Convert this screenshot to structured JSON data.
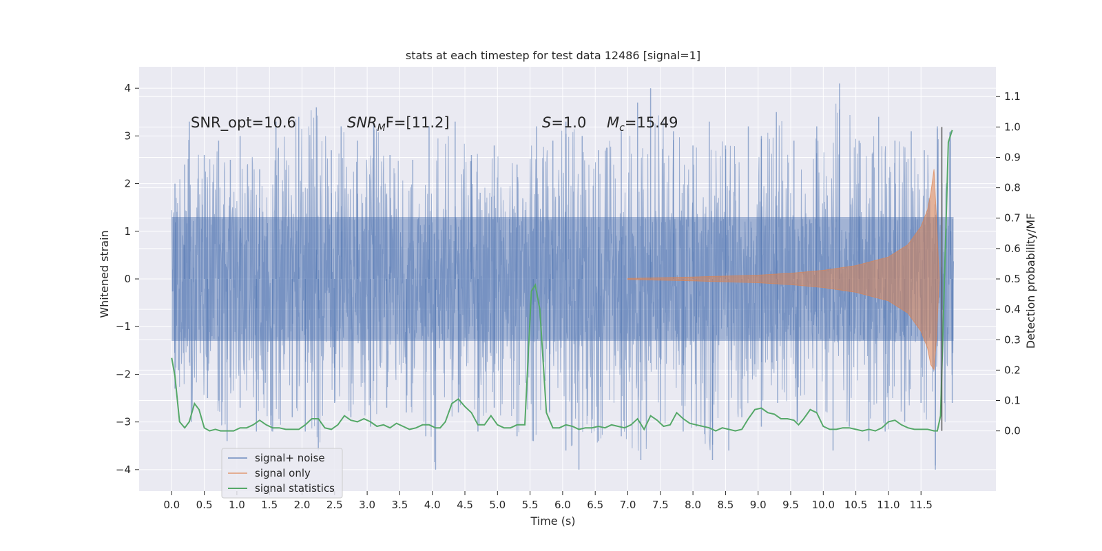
{
  "chart_data": {
    "type": "line",
    "title": "stats at each timestep for test data 12486 [signal=1]",
    "xlabel": "Time (s)",
    "ylabel": "Whitened strain",
    "y2label": "Detection probability/MF",
    "xlim": [
      -0.5,
      12.65
    ],
    "ylim": [
      -4.45,
      4.45
    ],
    "y2lim": [
      -0.198,
      1.198
    ],
    "x_ticks": [
      0.0,
      0.5,
      1.0,
      1.5,
      2.0,
      2.5,
      3.0,
      3.5,
      4.0,
      4.5,
      5.0,
      5.5,
      6.0,
      6.5,
      7.0,
      7.5,
      8.0,
      8.5,
      9.0,
      9.5,
      10.0,
      10.5,
      11.0,
      11.5
    ],
    "x_tick_labels": [
      "0.0",
      "0.5",
      "1.0",
      "1.5",
      "2.0",
      "2.5",
      "3.0",
      "3.5",
      "4.0",
      "4.5",
      "5.0",
      "5.5",
      "6.0",
      "6.5",
      "7.0",
      "7.5",
      "8.0",
      "8.5",
      "9.0",
      "9.5",
      "10.0",
      "10.5",
      "11.0",
      "11.5"
    ],
    "y_ticks": [
      -4,
      -3,
      -2,
      -1,
      0,
      1,
      2,
      3,
      4
    ],
    "y_tick_labels": [
      "−4",
      "−3",
      "−2",
      "−1",
      "0",
      "1",
      "2",
      "3",
      "4"
    ],
    "y2_ticks": [
      0.0,
      0.1,
      0.2,
      0.3,
      0.4,
      0.5,
      0.6,
      0.7,
      0.8,
      0.9,
      1.0,
      1.1
    ],
    "y2_tick_labels": [
      "0.0",
      "0.1",
      "0.2",
      "0.3",
      "0.4",
      "0.5",
      "0.6",
      "0.7",
      "0.8",
      "0.9",
      "1.0",
      "1.1"
    ],
    "grid": true,
    "legend_position": "lower-left",
    "colors": {
      "background": "#eaeaf2",
      "grid": "#ffffff",
      "signal_noise": "#4c72b0",
      "signal_only": "#dd8452",
      "signal_statistics": "#55a868",
      "marker_line": "#555555"
    },
    "annotations": {
      "snr_opt": "SNR_opt=10.6",
      "snr_mf_base": "SNR",
      "snr_mf_sub": "M",
      "snr_mf_tail": "F=[11.2]",
      "s_var": "S",
      "s_val": "=1.0",
      "mc_var": "M",
      "mc_sub": "c",
      "mc_val": "=15.49"
    },
    "series": [
      {
        "name": "signal+ noise",
        "axis": "left",
        "x_range": [
          0.0,
          12.0
        ],
        "band_1sigma": [
          -1.3,
          1.3
        ],
        "band_2sigma": [
          -1.95,
          1.95
        ],
        "peak_values": [
          [
            0.05,
            2.0
          ],
          [
            0.2,
            2.4
          ],
          [
            0.27,
            3.3
          ],
          [
            0.5,
            2.6
          ],
          [
            0.72,
            2.9
          ],
          [
            0.9,
            2.5
          ],
          [
            1.05,
            3.0
          ],
          [
            1.35,
            2.3
          ],
          [
            1.6,
            3.3
          ],
          [
            1.95,
            3.4
          ],
          [
            2.22,
            3.6
          ],
          [
            2.45,
            2.7
          ],
          [
            2.6,
            3.2
          ],
          [
            2.85,
            2.9
          ],
          [
            3.1,
            3.3
          ],
          [
            3.35,
            2.6
          ],
          [
            3.7,
            2.5
          ],
          [
            3.95,
            3.2
          ],
          [
            4.35,
            3.3
          ],
          [
            4.6,
            2.6
          ],
          [
            4.95,
            2.8
          ],
          [
            5.3,
            2.4
          ],
          [
            5.6,
            3.2
          ],
          [
            5.85,
            2.9
          ],
          [
            6.05,
            3.3
          ],
          [
            6.3,
            3.0
          ],
          [
            6.55,
            2.7
          ],
          [
            6.9,
            3.1
          ],
          [
            7.15,
            3.7
          ],
          [
            7.35,
            4.0
          ],
          [
            7.7,
            3.1
          ],
          [
            8.0,
            2.8
          ],
          [
            8.25,
            3.3
          ],
          [
            8.5,
            2.8
          ],
          [
            8.85,
            3.2
          ],
          [
            9.05,
            3.0
          ],
          [
            9.28,
            3.5
          ],
          [
            9.55,
            2.9
          ],
          [
            9.9,
            3.2
          ],
          [
            10.25,
            4.1
          ],
          [
            10.55,
            2.9
          ],
          [
            10.85,
            3.4
          ],
          [
            11.1,
            2.9
          ],
          [
            11.35,
            3.1
          ],
          [
            11.55,
            2.7
          ],
          [
            11.75,
            3.2
          ],
          [
            11.95,
            3.1
          ]
        ],
        "trough_values": [
          [
            0.05,
            -2.3
          ],
          [
            0.3,
            -3.0
          ],
          [
            0.55,
            -2.5
          ],
          [
            0.85,
            -3.4
          ],
          [
            1.05,
            -2.7
          ],
          [
            1.3,
            -3.2
          ],
          [
            1.55,
            -3.2
          ],
          [
            1.85,
            -2.9
          ],
          [
            2.05,
            -3.2
          ],
          [
            2.25,
            -3.6
          ],
          [
            2.5,
            -2.6
          ],
          [
            2.75,
            -2.9
          ],
          [
            3.05,
            -3.1
          ],
          [
            3.3,
            -2.7
          ],
          [
            3.6,
            -2.8
          ],
          [
            3.9,
            -3.3
          ],
          [
            4.05,
            -4.0
          ],
          [
            4.4,
            -2.8
          ],
          [
            4.7,
            -3.2
          ],
          [
            4.95,
            -2.7
          ],
          [
            5.3,
            -3.3
          ],
          [
            5.55,
            -3.4
          ],
          [
            5.8,
            -2.8
          ],
          [
            6.05,
            -3.6
          ],
          [
            6.25,
            -4.0
          ],
          [
            6.55,
            -3.4
          ],
          [
            6.9,
            -3.3
          ],
          [
            7.2,
            -3.8
          ],
          [
            7.5,
            -3.0
          ],
          [
            7.85,
            -3.2
          ],
          [
            8.05,
            -3.1
          ],
          [
            8.3,
            -3.8
          ],
          [
            8.55,
            -3.6
          ],
          [
            8.75,
            -2.9
          ],
          [
            9.05,
            -3.1
          ],
          [
            9.3,
            -2.6
          ],
          [
            9.6,
            -3.0
          ],
          [
            9.9,
            -2.8
          ],
          [
            10.15,
            -3.6
          ],
          [
            10.4,
            -3.1
          ],
          [
            10.7,
            -3.4
          ],
          [
            10.95,
            -3.2
          ],
          [
            11.25,
            -3.0
          ],
          [
            11.5,
            -2.6
          ],
          [
            11.72,
            -4.0
          ],
          [
            11.98,
            -2.6
          ]
        ]
      },
      {
        "name": "signal only",
        "axis": "left",
        "x_range": [
          7.0,
          11.78
        ],
        "envelope": [
          [
            7.0,
            0.01
          ],
          [
            8.0,
            0.04
          ],
          [
            9.0,
            0.08
          ],
          [
            9.5,
            0.12
          ],
          [
            10.0,
            0.18
          ],
          [
            10.5,
            0.28
          ],
          [
            11.0,
            0.46
          ],
          [
            11.3,
            0.72
          ],
          [
            11.5,
            1.1
          ],
          [
            11.6,
            1.45
          ],
          [
            11.65,
            1.8
          ],
          [
            11.7,
            2.3
          ],
          [
            11.74,
            1.2
          ],
          [
            11.78,
            0.0
          ]
        ],
        "negative_peak": [
          11.7,
          -1.9
        ]
      },
      {
        "name": "signal statistics",
        "axis": "right",
        "x": [
          0.0,
          0.05,
          0.12,
          0.2,
          0.27,
          0.35,
          0.42,
          0.5,
          0.58,
          0.67,
          0.75,
          0.85,
          0.95,
          1.05,
          1.15,
          1.25,
          1.35,
          1.45,
          1.55,
          1.65,
          1.75,
          1.85,
          1.95,
          2.05,
          2.15,
          2.25,
          2.35,
          2.45,
          2.55,
          2.65,
          2.75,
          2.85,
          2.95,
          3.05,
          3.15,
          3.25,
          3.35,
          3.45,
          3.55,
          3.65,
          3.75,
          3.85,
          3.95,
          4.05,
          4.12,
          4.2,
          4.3,
          4.4,
          4.5,
          4.6,
          4.7,
          4.8,
          4.9,
          5.0,
          5.1,
          5.2,
          5.3,
          5.42,
          5.52,
          5.58,
          5.65,
          5.75,
          5.85,
          5.95,
          6.05,
          6.15,
          6.25,
          6.35,
          6.45,
          6.55,
          6.65,
          6.75,
          6.85,
          6.95,
          7.05,
          7.15,
          7.25,
          7.35,
          7.45,
          7.55,
          7.65,
          7.75,
          7.85,
          7.95,
          8.05,
          8.15,
          8.25,
          8.35,
          8.45,
          8.55,
          8.65,
          8.75,
          8.85,
          8.95,
          9.05,
          9.15,
          9.25,
          9.35,
          9.45,
          9.55,
          9.62,
          9.7,
          9.8,
          9.9,
          10.0,
          10.1,
          10.2,
          10.3,
          10.4,
          10.5,
          10.6,
          10.7,
          10.8,
          10.9,
          11.0,
          11.1,
          11.2,
          11.3,
          11.4,
          11.5,
          11.6,
          11.7,
          11.75,
          11.8,
          11.86,
          11.92,
          11.98
        ],
        "y": [
          0.24,
          0.18,
          0.03,
          0.01,
          0.03,
          0.09,
          0.07,
          0.01,
          0.0,
          0.005,
          0.0,
          0.0,
          0.0,
          0.01,
          0.01,
          0.02,
          0.035,
          0.02,
          0.01,
          0.01,
          0.005,
          0.005,
          0.005,
          0.02,
          0.04,
          0.04,
          0.01,
          0.005,
          0.02,
          0.05,
          0.035,
          0.03,
          0.04,
          0.03,
          0.015,
          0.02,
          0.01,
          0.025,
          0.015,
          0.005,
          0.01,
          0.02,
          0.02,
          0.01,
          0.01,
          0.03,
          0.09,
          0.105,
          0.08,
          0.06,
          0.02,
          0.02,
          0.05,
          0.02,
          0.01,
          0.01,
          0.02,
          0.02,
          0.46,
          0.48,
          0.4,
          0.06,
          0.01,
          0.01,
          0.02,
          0.015,
          0.005,
          0.01,
          0.01,
          0.015,
          0.01,
          0.02,
          0.015,
          0.01,
          0.02,
          0.04,
          0.005,
          0.05,
          0.035,
          0.015,
          0.02,
          0.06,
          0.04,
          0.025,
          0.02,
          0.015,
          0.01,
          0.0,
          0.01,
          0.005,
          0.0,
          0.005,
          0.04,
          0.07,
          0.075,
          0.06,
          0.055,
          0.04,
          0.04,
          0.035,
          0.02,
          0.04,
          0.07,
          0.06,
          0.015,
          0.005,
          0.005,
          0.01,
          0.01,
          0.005,
          0.0,
          0.005,
          0.0,
          0.01,
          0.03,
          0.035,
          0.02,
          0.01,
          0.005,
          0.005,
          0.005,
          0.0,
          0.0,
          0.05,
          0.5,
          0.95,
          0.99
        ]
      }
    ],
    "marker_line": {
      "x": 11.82,
      "y2_range": [
        0.0,
        1.0
      ]
    }
  }
}
